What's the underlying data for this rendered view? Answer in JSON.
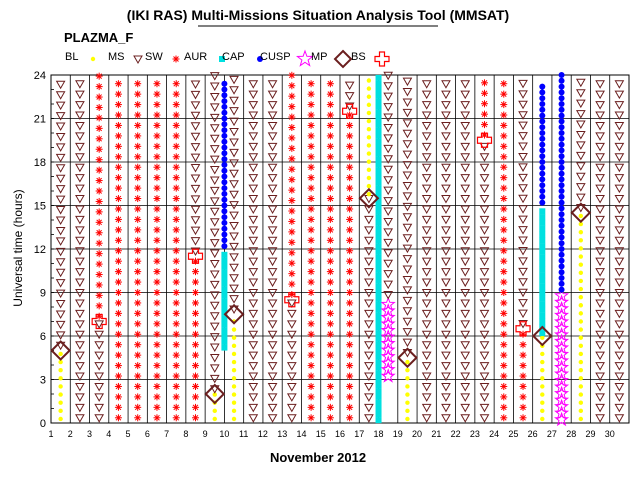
{
  "header": {
    "title": "(IKI RAS) Multi-Missions Situation Analysis Tool (MMSAT)",
    "dataset": "PLAZMA_F"
  },
  "legend": [
    {
      "code": "BL",
      "name": "BL",
      "marker": "dot",
      "color": "#ffff00"
    },
    {
      "code": "MS",
      "name": "MS",
      "marker": "triangle",
      "color": "#6b1f1f"
    },
    {
      "code": "SW",
      "name": "SW",
      "marker": "asterisk",
      "color": "#ff0000"
    },
    {
      "code": "AUR",
      "name": "AUR",
      "marker": "square",
      "color": "#00e0e0"
    },
    {
      "code": "CAP",
      "name": "CAP",
      "marker": "circle",
      "color": "#0000ff"
    },
    {
      "code": "CUSP",
      "name": "CUSP",
      "marker": "star",
      "color": "#ff00ff"
    },
    {
      "code": "MP",
      "name": "MP",
      "marker": "diamond",
      "color": "#6b1f1f"
    },
    {
      "code": "BS",
      "name": "BS",
      "marker": "cross",
      "color": "#ff0000"
    }
  ],
  "chart_data": {
    "type": "scatter",
    "title": "(IKI RAS) Multi-Missions Situation Analysis Tool (MMSAT)",
    "subtitle": "PLAZMA_F",
    "xlabel": "November 2012",
    "ylabel": "Universal time (hours)",
    "xlim": [
      1,
      31
    ],
    "ylim": [
      0,
      24
    ],
    "xticks": [
      1,
      2,
      3,
      4,
      5,
      6,
      7,
      8,
      9,
      10,
      11,
      12,
      13,
      14,
      15,
      16,
      17,
      18,
      19,
      20,
      21,
      22,
      23,
      24,
      25,
      26,
      27,
      28,
      29,
      30
    ],
    "yticks": [
      0,
      3,
      6,
      9,
      12,
      15,
      18,
      21,
      24
    ],
    "grid": true,
    "series_columns": [
      {
        "day": 1.5,
        "segments": [
          {
            "r": "BL",
            "from": 0,
            "to": 5
          },
          {
            "r": "MS",
            "from": 5,
            "to": 24
          }
        ]
      },
      {
        "day": 2.5,
        "segments": [
          {
            "r": "MS",
            "from": 0,
            "to": 24
          }
        ]
      },
      {
        "day": 3.5,
        "segments": [
          {
            "r": "MS",
            "from": 0,
            "to": 7
          },
          {
            "r": "SW",
            "from": 7,
            "to": 24
          }
        ]
      },
      {
        "day": 4.5,
        "segments": [
          {
            "r": "SW",
            "from": 0,
            "to": 24
          }
        ]
      },
      {
        "day": 5.5,
        "segments": [
          {
            "r": "SW",
            "from": 0,
            "to": 24
          }
        ]
      },
      {
        "day": 6.5,
        "segments": [
          {
            "r": "SW",
            "from": 0,
            "to": 24
          }
        ]
      },
      {
        "day": 7.5,
        "segments": [
          {
            "r": "SW",
            "from": 0,
            "to": 24
          }
        ]
      },
      {
        "day": 8.5,
        "segments": [
          {
            "r": "SW",
            "from": 0,
            "to": 11.5
          },
          {
            "r": "MS",
            "from": 11.5,
            "to": 24
          }
        ]
      },
      {
        "day": 9.5,
        "segments": [
          {
            "r": "BL",
            "from": 0,
            "to": 2
          },
          {
            "r": "MS",
            "from": 2,
            "to": 24
          }
        ]
      },
      {
        "day": 10.0,
        "segments": [
          {
            "r": "AUR",
            "from": 5,
            "to": 12
          },
          {
            "r": "CAP",
            "from": 12,
            "to": 23.5
          }
        ]
      },
      {
        "day": 10.5,
        "segments": [
          {
            "r": "BL",
            "from": 0,
            "to": 7.5
          },
          {
            "r": "MS",
            "from": 7.5,
            "to": 24
          }
        ]
      },
      {
        "day": 11.5,
        "segments": [
          {
            "r": "MS",
            "from": 0,
            "to": 24
          }
        ]
      },
      {
        "day": 12.5,
        "segments": [
          {
            "r": "MS",
            "from": 0,
            "to": 24
          }
        ]
      },
      {
        "day": 13.5,
        "segments": [
          {
            "r": "MS",
            "from": 0,
            "to": 8.5
          },
          {
            "r": "SW",
            "from": 8.5,
            "to": 24
          }
        ]
      },
      {
        "day": 14.5,
        "segments": [
          {
            "r": "SW",
            "from": 0,
            "to": 24
          }
        ]
      },
      {
        "day": 15.5,
        "segments": [
          {
            "r": "SW",
            "from": 0,
            "to": 24
          }
        ]
      },
      {
        "day": 16.5,
        "segments": [
          {
            "r": "SW",
            "from": 0,
            "to": 21.5
          },
          {
            "r": "MS",
            "from": 21.5,
            "to": 24
          }
        ]
      },
      {
        "day": 17.5,
        "segments": [
          {
            "r": "MS",
            "from": 0,
            "to": 15.5
          },
          {
            "r": "BL",
            "from": 15.5,
            "to": 24
          }
        ]
      },
      {
        "day": 18.0,
        "segments": [
          {
            "r": "AUR",
            "from": 0,
            "to": 24
          }
        ]
      },
      {
        "day": 18.5,
        "segments": [
          {
            "r": "CUSP",
            "from": 3,
            "to": 8.5
          },
          {
            "r": "MS",
            "from": 8.5,
            "to": 24
          }
        ]
      },
      {
        "day": 19.5,
        "segments": [
          {
            "r": "BL",
            "from": 0,
            "to": 4.5
          },
          {
            "r": "MS",
            "from": 4.5,
            "to": 24
          }
        ]
      },
      {
        "day": 20.5,
        "segments": [
          {
            "r": "MS",
            "from": 0,
            "to": 24
          }
        ]
      },
      {
        "day": 21.5,
        "segments": [
          {
            "r": "MS",
            "from": 0,
            "to": 24
          }
        ]
      },
      {
        "day": 22.5,
        "segments": [
          {
            "r": "MS",
            "from": 0,
            "to": 24
          }
        ]
      },
      {
        "day": 23.5,
        "segments": [
          {
            "r": "MS",
            "from": 0,
            "to": 19.5
          },
          {
            "r": "SW",
            "from": 19.5,
            "to": 24
          }
        ]
      },
      {
        "day": 24.5,
        "segments": [
          {
            "r": "SW",
            "from": 0,
            "to": 24
          }
        ]
      },
      {
        "day": 25.5,
        "segments": [
          {
            "r": "SW",
            "from": 0,
            "to": 6.5
          },
          {
            "r": "MS",
            "from": 6.5,
            "to": 24
          }
        ]
      },
      {
        "day": 26.5,
        "segments": [
          {
            "r": "BL",
            "from": 0,
            "to": 6
          },
          {
            "r": "AUR",
            "from": 6,
            "to": 15
          },
          {
            "r": "CAP",
            "from": 15,
            "to": 23.5
          }
        ]
      },
      {
        "day": 27.5,
        "segments": [
          {
            "r": "CUSP",
            "from": 0,
            "to": 9
          },
          {
            "r": "CAP",
            "from": 9,
            "to": 24
          }
        ]
      },
      {
        "day": 28.5,
        "segments": [
          {
            "r": "BL",
            "from": 0,
            "to": 14.5
          },
          {
            "r": "MS",
            "from": 14.5,
            "to": 24
          }
        ]
      },
      {
        "day": 29.5,
        "segments": [
          {
            "r": "MS",
            "from": 0,
            "to": 24
          }
        ]
      },
      {
        "day": 30.5,
        "segments": [
          {
            "r": "MS",
            "from": 0,
            "to": 24
          }
        ]
      }
    ],
    "mp_crossings": [
      {
        "day": 1.5,
        "hour": 5
      },
      {
        "day": 9.5,
        "hour": 2
      },
      {
        "day": 10.5,
        "hour": 7.5
      },
      {
        "day": 17.5,
        "hour": 15.5
      },
      {
        "day": 19.5,
        "hour": 4.5
      },
      {
        "day": 26.5,
        "hour": 6
      },
      {
        "day": 28.5,
        "hour": 14.5
      }
    ],
    "bs_crossings": [
      {
        "day": 3.5,
        "hour": 7
      },
      {
        "day": 8.5,
        "hour": 11.5
      },
      {
        "day": 13.5,
        "hour": 8.5
      },
      {
        "day": 16.5,
        "hour": 21.5
      },
      {
        "day": 23.5,
        "hour": 19.5
      },
      {
        "day": 25.5,
        "hour": 6.5
      }
    ]
  }
}
